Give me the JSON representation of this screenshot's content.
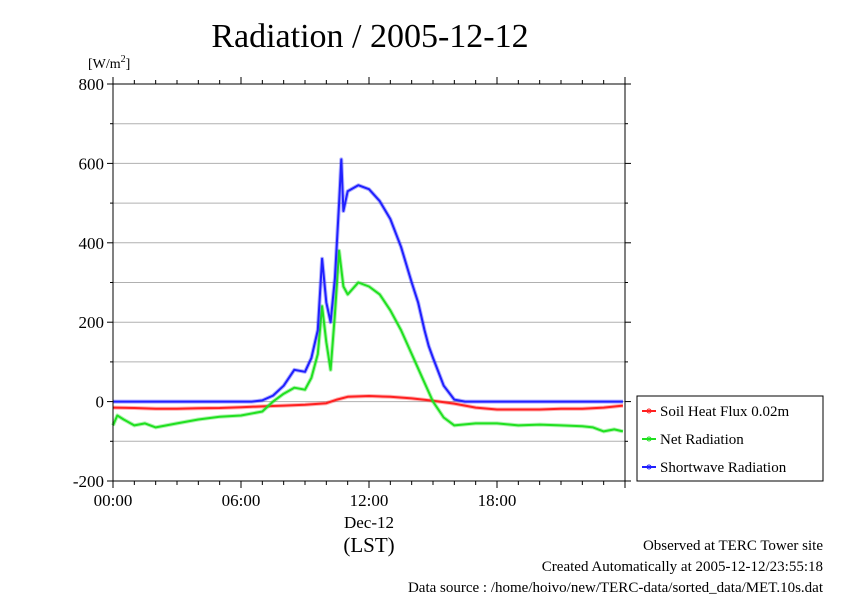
{
  "chart_data": {
    "type": "line",
    "title": "Radiation / 2005-12-12",
    "ylabel_unit": "[W/m",
    "ylabel_unit_sup": "2",
    "ylabel_unit_close": "]",
    "ylim": [
      -200,
      800
    ],
    "yticks": [
      -200,
      0,
      200,
      400,
      600,
      800
    ],
    "y_minor_step": 100,
    "xlim": [
      0,
      24
    ],
    "xticks": [
      {
        "hour": 0,
        "label": "00:00"
      },
      {
        "hour": 6,
        "label": "06:00"
      },
      {
        "hour": 12,
        "label": "12:00"
      },
      {
        "hour": 18,
        "label": "18:00"
      }
    ],
    "x_date_label": "Dec-12",
    "x_axis_label": "(LST)",
    "grid": "horizontal",
    "legend_position": "right-bottom",
    "series": [
      {
        "name": "Soil Heat Flux 0.02m",
        "color": "#ff2020",
        "x": [
          0,
          1,
          2,
          3,
          4,
          5,
          6,
          7,
          8,
          9,
          10,
          10.5,
          11,
          12,
          13,
          14,
          15,
          16,
          17,
          18,
          19,
          20,
          21,
          22,
          23,
          23.9
        ],
        "y": [
          -15,
          -16,
          -18,
          -18,
          -17,
          -16,
          -14,
          -12,
          -10,
          -8,
          -4,
          5,
          12,
          14,
          12,
          8,
          2,
          -5,
          -15,
          -20,
          -20,
          -20,
          -18,
          -18,
          -15,
          -10
        ]
      },
      {
        "name": "Net Radiation",
        "color": "#20e020",
        "x": [
          0,
          0.2,
          0.5,
          1,
          1.5,
          2,
          3,
          4,
          5,
          6,
          7,
          7.5,
          8,
          8.5,
          9,
          9.3,
          9.6,
          9.8,
          10,
          10.2,
          10.4,
          10.6,
          10.8,
          11,
          11.5,
          12,
          12.5,
          13,
          13.5,
          14,
          14.5,
          15,
          15.5,
          16,
          17,
          18,
          19,
          20,
          21,
          22,
          22.5,
          23,
          23.5,
          23.9
        ],
        "y": [
          -60,
          -35,
          -45,
          -60,
          -55,
          -65,
          -55,
          -45,
          -38,
          -35,
          -25,
          0,
          20,
          35,
          30,
          60,
          120,
          240,
          150,
          80,
          220,
          380,
          290,
          270,
          300,
          290,
          270,
          230,
          180,
          120,
          60,
          0,
          -40,
          -60,
          -55,
          -55,
          -60,
          -58,
          -60,
          -62,
          -65,
          -75,
          -70,
          -75
        ]
      },
      {
        "name": "Shortwave Radiation",
        "color": "#2020ff",
        "x": [
          0,
          1,
          2,
          3,
          4,
          5,
          6,
          6.5,
          7,
          7.5,
          8,
          8.5,
          9,
          9.3,
          9.6,
          9.8,
          10,
          10.2,
          10.4,
          10.6,
          10.7,
          10.8,
          11,
          11.5,
          12,
          12.5,
          13,
          13.5,
          14,
          14.3,
          14.6,
          14.8,
          15,
          15.5,
          16,
          16.5,
          17,
          18,
          19,
          20,
          21,
          22,
          23,
          23.9
        ],
        "y": [
          0,
          0,
          0,
          0,
          0,
          0,
          0,
          0,
          3,
          15,
          40,
          80,
          75,
          110,
          180,
          360,
          250,
          200,
          310,
          500,
          610,
          480,
          530,
          545,
          535,
          505,
          460,
          390,
          300,
          250,
          180,
          140,
          110,
          40,
          5,
          0,
          0,
          0,
          0,
          0,
          0,
          0,
          0,
          0
        ]
      }
    ]
  },
  "footer": {
    "line1": "Observed at TERC Tower site",
    "line2": "Created Automatically at 2005-12-12/23:55:18",
    "line3": "Data source : /home/hoivo/new/TERC-data/sorted_data/MET.10s.dat"
  }
}
